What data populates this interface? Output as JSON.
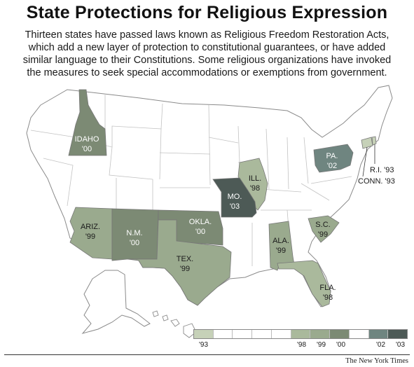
{
  "title": "State Protections for Religious Expression",
  "subtitle": "Thirteen states have passed laws known as Religious Freedom Restoration Acts, which add a new layer of protection to constitutional guarantees, or have added similar language to their Constitutions. Some religious organizations have invoked the measures to seek special accommodations or exemptions from government.",
  "colors": {
    "y93": "#c6d1b8",
    "y98": "#aab99c",
    "y99": "#9aaa8e",
    "y00": "#7c8a74",
    "y02": "#6f8580",
    "y03": "#4d5a56",
    "land": "#ffffff",
    "border": "#8a8a8a"
  },
  "states": [
    {
      "abbr": "IDAHO",
      "year": "'00",
      "period": "y00"
    },
    {
      "abbr": "ILL.",
      "year": "'98",
      "period": "y98"
    },
    {
      "abbr": "PA.",
      "year": "'02",
      "period": "y02"
    },
    {
      "abbr": "MO.",
      "year": "'03",
      "period": "y03"
    },
    {
      "abbr": "ARIZ.",
      "year": "'99",
      "period": "y99"
    },
    {
      "abbr": "N.M.",
      "year": "'00",
      "period": "y00"
    },
    {
      "abbr": "OKLA.",
      "year": "'00",
      "period": "y00"
    },
    {
      "abbr": "TEX.",
      "year": "'99",
      "period": "y99"
    },
    {
      "abbr": "ALA.",
      "year": "'99",
      "period": "y99"
    },
    {
      "abbr": "S.C.",
      "year": "'99",
      "period": "y99"
    },
    {
      "abbr": "FLA.",
      "year": "'98",
      "period": "y98"
    }
  ],
  "callouts": [
    {
      "label": "R.I. '93",
      "period": "y93"
    },
    {
      "label": "CONN. '93",
      "period": "y93"
    }
  ],
  "legend": {
    "labels": [
      "'93",
      "'98",
      "'99",
      "'00",
      "'02",
      "'03"
    ]
  },
  "credit": "The New York Times"
}
